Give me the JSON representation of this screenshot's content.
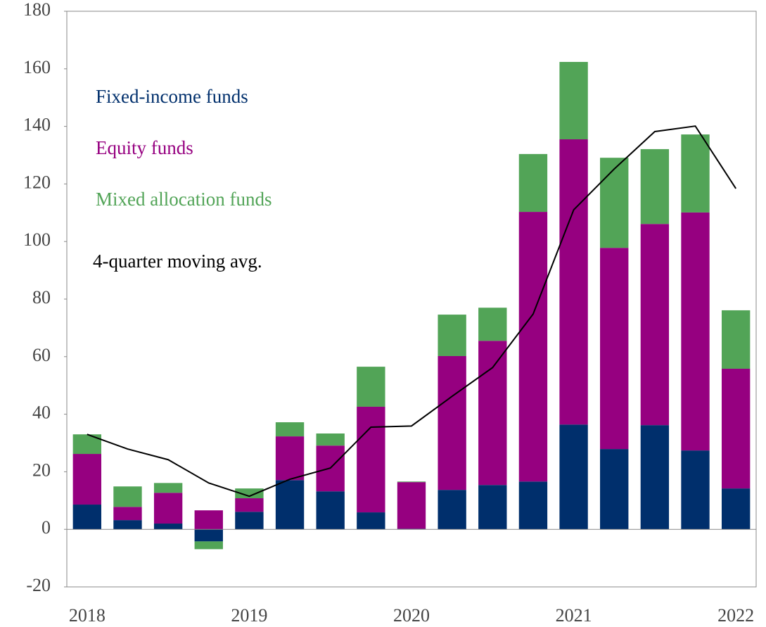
{
  "chart_data": {
    "type": "bar",
    "stacked": true,
    "categories": [
      "2018",
      null,
      null,
      null,
      "2019",
      null,
      null,
      null,
      "2020",
      null,
      null,
      null,
      "2021",
      null,
      null,
      null,
      "2022"
    ],
    "series": [
      {
        "name": "Fixed-income funds",
        "color": "#002f6c",
        "values": [
          8.6,
          3.2,
          2.0,
          -4.2,
          6.1,
          17.1,
          13.2,
          5.9,
          0.2,
          13.7,
          15.4,
          16.6,
          36.4,
          27.9,
          36.2,
          27.4,
          14.2
        ]
      },
      {
        "name": "Equity funds",
        "color": "#960080",
        "values": [
          17.6,
          4.6,
          10.7,
          6.6,
          4.7,
          15.2,
          15.9,
          36.7,
          16.2,
          46.5,
          50.1,
          93.7,
          99.1,
          69.9,
          69.9,
          82.7,
          41.6
        ]
      },
      {
        "name": "Mixed allocation funds",
        "color": "#52a457",
        "values": [
          6.8,
          7.1,
          3.4,
          -2.7,
          3.4,
          4.9,
          4.2,
          13.9,
          0.2,
          14.4,
          11.5,
          20.1,
          26.9,
          31.3,
          26.0,
          27.1,
          20.3
        ]
      },
      {
        "name": "4-quarter moving avg.",
        "color": "#000000",
        "type": "line",
        "values": [
          33.0,
          27.9,
          24.2,
          16.1,
          11.5,
          17.4,
          21.3,
          35.5,
          35.9,
          46.2,
          56.2,
          74.8,
          111.0,
          125.2,
          138.2,
          140.1,
          118.4
        ]
      }
    ],
    "ylim": [
      -20,
      180
    ],
    "yticks": [
      -20,
      0,
      20,
      40,
      60,
      80,
      100,
      120,
      140,
      160,
      180
    ],
    "grid": false,
    "legend": "upper left"
  }
}
